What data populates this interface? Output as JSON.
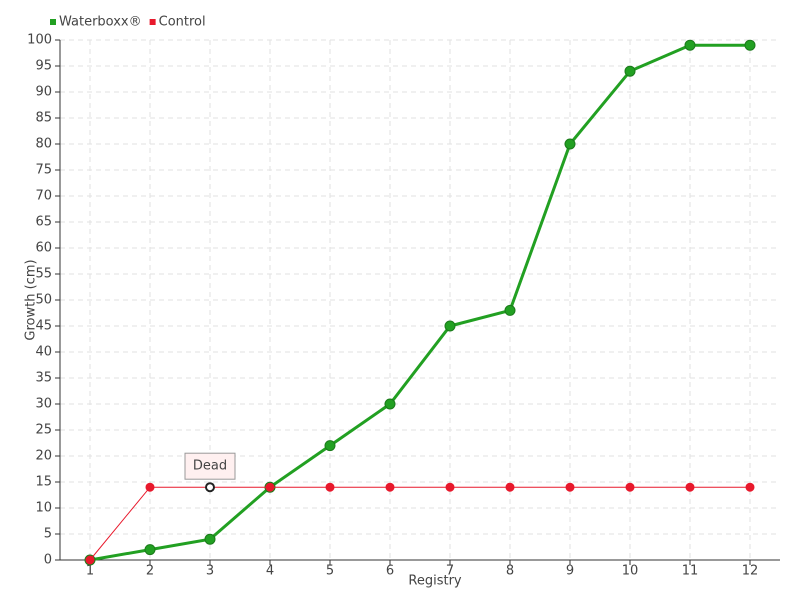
{
  "chart_data": {
    "type": "line",
    "categories": [
      "1",
      "2",
      "3",
      "4",
      "5",
      "6",
      "7",
      "8",
      "9",
      "10",
      "11",
      "12"
    ],
    "series": [
      {
        "name": "Waterboxx®",
        "color": "#22a022",
        "values": [
          0,
          2,
          4,
          14,
          22,
          30,
          45,
          48,
          80,
          94,
          99,
          99
        ]
      },
      {
        "name": "Control",
        "color": "#e8192c",
        "values": [
          0,
          14,
          14,
          14,
          14,
          14,
          14,
          14,
          14,
          14,
          14,
          14
        ]
      }
    ],
    "xlabel": "Registry",
    "ylabel": "Growth (cm)",
    "ylim": [
      0,
      100
    ],
    "yticks": [
      0,
      5,
      10,
      15,
      20,
      25,
      30,
      35,
      40,
      45,
      50,
      55,
      60,
      65,
      70,
      75,
      80,
      85,
      90,
      95,
      100
    ],
    "grid": true,
    "legend": "top-left",
    "annotations": [
      {
        "text": "Dead",
        "series": 1,
        "index": 2
      }
    ]
  }
}
